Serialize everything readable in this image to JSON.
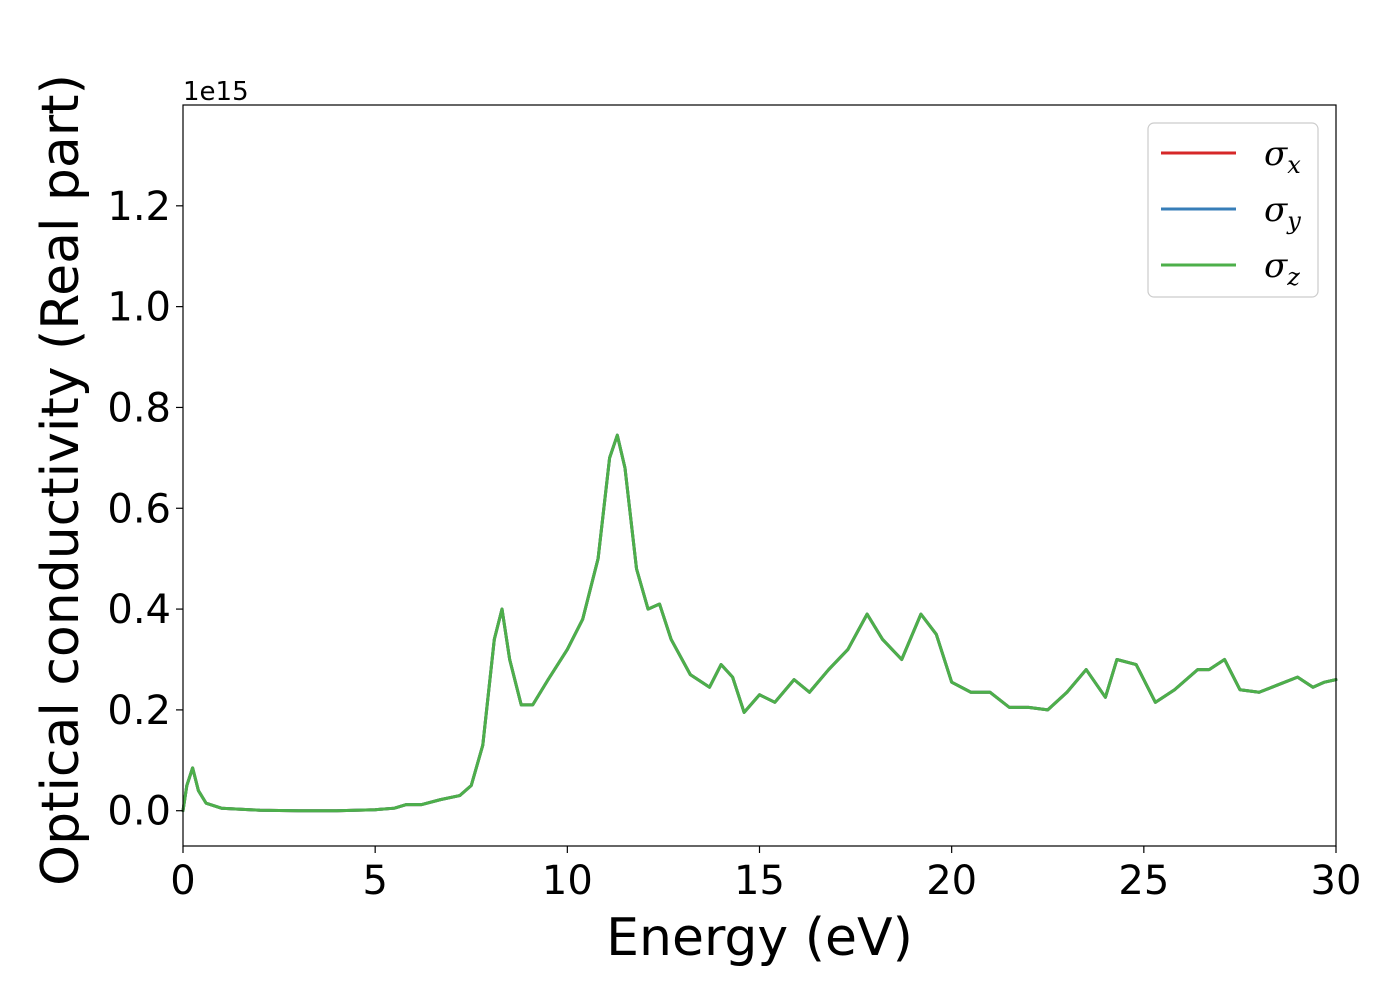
{
  "chart_data": {
    "type": "line",
    "title": "",
    "xlabel": "Energy (eV)",
    "ylabel": "Optical conductivity (Real part)",
    "y_offset_label": "1e15",
    "xlim": [
      0,
      30
    ],
    "ylim": [
      -0.07,
      1.4
    ],
    "x_ticks": [
      0,
      5,
      10,
      15,
      20,
      25,
      30
    ],
    "x_tick_labels": [
      "0",
      "5",
      "10",
      "15",
      "20",
      "25",
      "30"
    ],
    "y_ticks": [
      0.0,
      0.2,
      0.4,
      0.6,
      0.8,
      1.0,
      1.2
    ],
    "y_tick_labels": [
      "0.0",
      "0.2",
      "0.4",
      "0.6",
      "0.8",
      "1.0",
      "1.2"
    ],
    "grid": false,
    "legend_position": "top-right",
    "x": [
      0,
      0.1,
      0.25,
      0.4,
      0.6,
      1.0,
      2,
      3,
      4,
      5,
      5.5,
      5.8,
      6.2,
      6.7,
      7.2,
      7.5,
      7.8,
      8.1,
      8.3,
      8.5,
      8.8,
      9.1,
      9.5,
      10.0,
      10.4,
      10.8,
      11.1,
      11.3,
      11.5,
      11.8,
      12.1,
      12.4,
      12.7,
      13.2,
      13.7,
      14.0,
      14.3,
      14.6,
      15.0,
      15.4,
      15.9,
      16.3,
      16.8,
      17.3,
      17.8,
      18.2,
      18.7,
      19.2,
      19.6,
      20.0,
      20.5,
      21.0,
      21.5,
      22.0,
      22.5,
      23.0,
      23.5,
      24.0,
      24.3,
      24.8,
      25.3,
      25.8,
      26.4,
      26.7,
      27.1,
      27.5,
      28.0,
      28.5,
      29.0,
      29.4,
      29.7,
      30.0
    ],
    "series": [
      {
        "name": "σx",
        "label_base": "σ",
        "label_sub": "x",
        "color": "#d62728",
        "values": [
          0.0,
          0.05,
          0.085,
          0.04,
          0.015,
          0.005,
          0.001,
          0.0,
          0.0,
          0.002,
          0.005,
          0.012,
          0.012,
          0.022,
          0.03,
          0.05,
          0.13,
          0.34,
          0.4,
          0.3,
          0.21,
          0.21,
          0.26,
          0.32,
          0.38,
          0.5,
          0.7,
          0.745,
          0.68,
          0.48,
          0.4,
          0.41,
          0.34,
          0.27,
          0.245,
          0.29,
          0.265,
          0.195,
          0.23,
          0.215,
          0.26,
          0.235,
          0.28,
          0.32,
          0.39,
          0.34,
          0.3,
          0.39,
          0.35,
          0.255,
          0.235,
          0.235,
          0.205,
          0.205,
          0.2,
          0.235,
          0.28,
          0.225,
          0.3,
          0.29,
          0.215,
          0.24,
          0.28,
          0.28,
          0.3,
          0.24,
          0.235,
          0.25,
          0.265,
          0.245,
          0.255,
          0.26
        ]
      },
      {
        "name": "σy",
        "label_base": "σ",
        "label_sub": "y",
        "color": "#377eb8",
        "values": [
          0.0,
          0.05,
          0.085,
          0.04,
          0.015,
          0.005,
          0.001,
          0.0,
          0.0,
          0.002,
          0.005,
          0.012,
          0.012,
          0.022,
          0.03,
          0.05,
          0.13,
          0.34,
          0.4,
          0.3,
          0.21,
          0.21,
          0.26,
          0.32,
          0.38,
          0.5,
          0.7,
          0.745,
          0.68,
          0.48,
          0.4,
          0.41,
          0.34,
          0.27,
          0.245,
          0.29,
          0.265,
          0.195,
          0.23,
          0.215,
          0.26,
          0.235,
          0.28,
          0.32,
          0.39,
          0.34,
          0.3,
          0.39,
          0.35,
          0.255,
          0.235,
          0.235,
          0.205,
          0.205,
          0.2,
          0.235,
          0.28,
          0.225,
          0.3,
          0.29,
          0.215,
          0.24,
          0.28,
          0.28,
          0.3,
          0.24,
          0.235,
          0.25,
          0.265,
          0.245,
          0.255,
          0.26
        ]
      },
      {
        "name": "σz",
        "label_base": "σ",
        "label_sub": "z",
        "color": "#4daf4a",
        "values": [
          0.0,
          0.05,
          0.085,
          0.04,
          0.015,
          0.005,
          0.001,
          0.0,
          0.0,
          0.002,
          0.005,
          0.012,
          0.012,
          0.022,
          0.03,
          0.05,
          0.13,
          0.34,
          0.4,
          0.3,
          0.21,
          0.21,
          0.26,
          0.32,
          0.38,
          0.5,
          0.7,
          0.745,
          0.68,
          0.48,
          0.4,
          0.41,
          0.34,
          0.27,
          0.245,
          0.29,
          0.265,
          0.195,
          0.23,
          0.215,
          0.26,
          0.235,
          0.28,
          0.32,
          0.39,
          0.34,
          0.3,
          0.39,
          0.35,
          0.255,
          0.235,
          0.235,
          0.205,
          0.205,
          0.2,
          0.235,
          0.28,
          0.225,
          0.3,
          0.29,
          0.215,
          0.24,
          0.28,
          0.28,
          0.3,
          0.24,
          0.235,
          0.25,
          0.265,
          0.245,
          0.255,
          0.26
        ]
      }
    ]
  }
}
